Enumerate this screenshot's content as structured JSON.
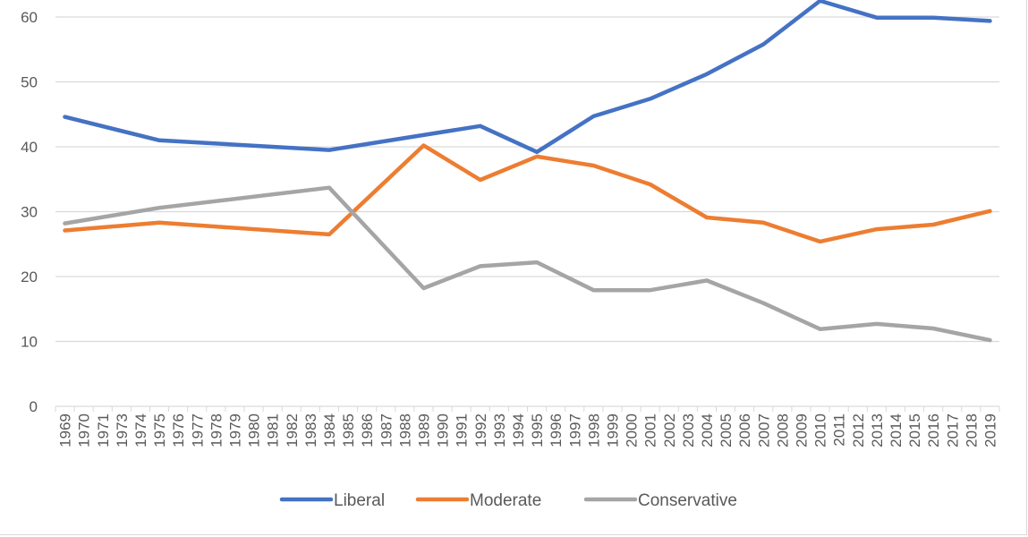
{
  "chart_data": {
    "type": "line",
    "title": "",
    "xlabel": "",
    "ylabel": "",
    "ylim": [
      0,
      60
    ],
    "yticks": [
      0,
      10,
      20,
      30,
      40,
      50,
      60
    ],
    "grid": "horizontal",
    "legend_position": "bottom",
    "categories": [
      "1969",
      "1970",
      "1971",
      "1973",
      "1974",
      "1975",
      "1976",
      "1977",
      "1978",
      "1979",
      "1980",
      "1981",
      "1982",
      "1983",
      "1984",
      "1985",
      "1986",
      "1987",
      "1988",
      "1989",
      "1990",
      "1991",
      "1992",
      "1993",
      "1994",
      "1995",
      "1996",
      "1997",
      "1998",
      "1999",
      "2000",
      "2001",
      "2002",
      "2003",
      "2004",
      "2005",
      "2006",
      "2007",
      "2008",
      "2009",
      "2010",
      "2011",
      "2012",
      "2013",
      "2014",
      "2015",
      "2016",
      "2017",
      "2018",
      "2019"
    ],
    "series": [
      {
        "name": "Liberal",
        "color": "#4472c4",
        "points": [
          {
            "x": "1969",
            "y": 44.6
          },
          {
            "x": "1975",
            "y": 41.0
          },
          {
            "x": "1984",
            "y": 39.5
          },
          {
            "x": "1992",
            "y": 43.2
          },
          {
            "x": "1995",
            "y": 39.2
          },
          {
            "x": "1998",
            "y": 44.7
          },
          {
            "x": "2001",
            "y": 47.4
          },
          {
            "x": "2004",
            "y": 51.2
          },
          {
            "x": "2007",
            "y": 55.8
          },
          {
            "x": "2010",
            "y": 62.5
          },
          {
            "x": "2013",
            "y": 59.9
          },
          {
            "x": "2016",
            "y": 59.9
          },
          {
            "x": "2019",
            "y": 59.4
          }
        ]
      },
      {
        "name": "Moderate",
        "color": "#ed7d31",
        "points": [
          {
            "x": "1969",
            "y": 27.1
          },
          {
            "x": "1975",
            "y": 28.3
          },
          {
            "x": "1984",
            "y": 26.5
          },
          {
            "x": "1989",
            "y": 40.2
          },
          {
            "x": "1992",
            "y": 34.9
          },
          {
            "x": "1995",
            "y": 38.5
          },
          {
            "x": "1998",
            "y": 37.1
          },
          {
            "x": "2001",
            "y": 34.2
          },
          {
            "x": "2004",
            "y": 29.1
          },
          {
            "x": "2007",
            "y": 28.3
          },
          {
            "x": "2010",
            "y": 25.4
          },
          {
            "x": "2013",
            "y": 27.3
          },
          {
            "x": "2016",
            "y": 28.0
          },
          {
            "x": "2019",
            "y": 30.1
          }
        ]
      },
      {
        "name": "Conservative",
        "color": "#a5a5a5",
        "points": [
          {
            "x": "1969",
            "y": 28.2
          },
          {
            "x": "1975",
            "y": 30.6
          },
          {
            "x": "1984",
            "y": 33.7
          },
          {
            "x": "1989",
            "y": 18.2
          },
          {
            "x": "1992",
            "y": 21.6
          },
          {
            "x": "1995",
            "y": 22.2
          },
          {
            "x": "1998",
            "y": 17.9
          },
          {
            "x": "2001",
            "y": 17.9
          },
          {
            "x": "2004",
            "y": 19.4
          },
          {
            "x": "2007",
            "y": 15.9
          },
          {
            "x": "2010",
            "y": 11.9
          },
          {
            "x": "2013",
            "y": 12.7
          },
          {
            "x": "2016",
            "y": 12.0
          },
          {
            "x": "2019",
            "y": 10.2
          }
        ]
      }
    ]
  }
}
